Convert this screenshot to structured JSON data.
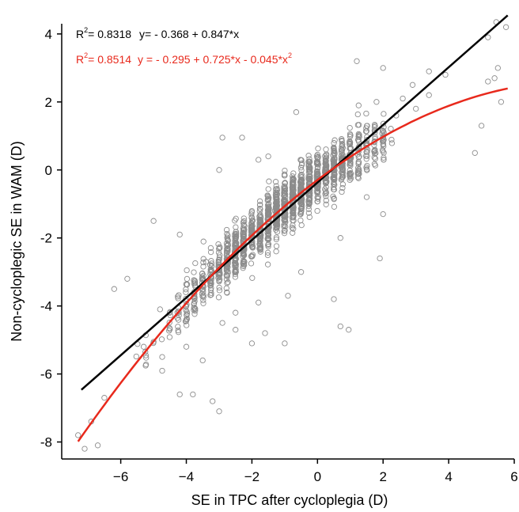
{
  "chart_data": {
    "type": "scatter",
    "title": "",
    "xlabel": "SE in TPC after cycloplegia (D)",
    "ylabel": "Non-cycloplegic SE in WAM (D)",
    "xlim": [
      -7.8,
      6.0
    ],
    "ylim": [
      -8.5,
      4.3
    ],
    "xticks": [
      -6,
      -4,
      -2,
      0,
      2,
      4,
      6
    ],
    "yticks": [
      -8,
      -6,
      -4,
      -2,
      0,
      2,
      4
    ],
    "xtick_labels": [
      "−6",
      "−4",
      "−2",
      "0",
      "2",
      "4",
      "6"
    ],
    "ytick_labels": [
      "-8",
      "-6",
      "-4",
      "-2",
      "0",
      "2",
      "4"
    ],
    "grid": false,
    "marker_color": "#8c8c8c",
    "linear_fit": {
      "color": "#000000",
      "r2_label": "R",
      "r2_sup": "2",
      "r2_value": "= 0.8318",
      "equation": "y= - 0.368 + 0.847*x",
      "intercept": -0.368,
      "slope": 0.847,
      "x_range": [
        -7.2,
        5.8
      ]
    },
    "quadratic_fit": {
      "color": "#e8291c",
      "r2_label": "R",
      "r2_sup": "2",
      "r2_value": "= 0.8514",
      "equation": "y = - 0.295 + 0.725*x - 0.045*x",
      "equation_sup": "2",
      "intercept": -0.295,
      "b1": 0.725,
      "b2": -0.045,
      "x_range": [
        -7.3,
        5.8
      ]
    },
    "outliers": [
      [
        -7.1,
        -8.2
      ],
      [
        -6.7,
        -8.1
      ],
      [
        -6.9,
        -7.4
      ],
      [
        -7.3,
        -7.8
      ],
      [
        -6.5,
        -6.7
      ],
      [
        -6.2,
        -3.5
      ],
      [
        -5.8,
        -3.2
      ],
      [
        -5.0,
        -1.5
      ],
      [
        -4.2,
        -1.9
      ],
      [
        -4.8,
        -4.1
      ],
      [
        -4.2,
        -6.6
      ],
      [
        -3.8,
        -6.6
      ],
      [
        -3.2,
        -6.8
      ],
      [
        -3.0,
        -7.1
      ],
      [
        -4.0,
        -5.2
      ],
      [
        -3.5,
        -5.6
      ],
      [
        -2.9,
        -4.5
      ],
      [
        -2.5,
        -4.7
      ],
      [
        -2.0,
        -5.1
      ],
      [
        -1.6,
        -4.8
      ],
      [
        -1.0,
        -5.1
      ],
      [
        -0.9,
        -3.7
      ],
      [
        -0.5,
        -3.0
      ],
      [
        0.5,
        -3.8
      ],
      [
        0.7,
        -4.6
      ],
      [
        0.95,
        -4.7
      ],
      [
        1.9,
        -2.6
      ],
      [
        2.0,
        -1.3
      ],
      [
        -3.0,
        0.0
      ],
      [
        -2.9,
        0.95
      ],
      [
        -2.3,
        0.95
      ],
      [
        -1.8,
        0.3
      ],
      [
        -1.5,
        0.4
      ],
      [
        -0.65,
        1.7
      ],
      [
        1.2,
        3.2
      ],
      [
        1.8,
        2.0
      ],
      [
        2.0,
        3.0
      ],
      [
        2.6,
        2.1
      ],
      [
        2.9,
        2.5
      ],
      [
        3.4,
        2.9
      ],
      [
        3.4,
        2.2
      ],
      [
        3.9,
        2.8
      ],
      [
        4.8,
        0.5
      ],
      [
        5.0,
        1.3
      ],
      [
        5.2,
        2.6
      ],
      [
        5.4,
        2.7
      ],
      [
        5.5,
        3.0
      ],
      [
        5.2,
        3.9
      ],
      [
        5.45,
        4.35
      ],
      [
        5.75,
        4.2
      ],
      [
        5.6,
        2.0
      ],
      [
        -1.3,
        -1.2
      ],
      [
        -3.4,
        -2.7
      ],
      [
        -5.3,
        -5.2
      ],
      [
        0.7,
        -2.0
      ],
      [
        1.5,
        -0.8
      ],
      [
        2.4,
        1.6
      ],
      [
        -2.5,
        -4.2
      ],
      [
        -1.8,
        -3.9
      ],
      [
        3.0,
        1.8
      ]
    ],
    "cloud": {
      "n": 1500,
      "x_mean": -0.9,
      "x_sd": 1.7,
      "residual_sd": 0.38,
      "x_min": -5.8,
      "x_max": 2.2
    }
  }
}
